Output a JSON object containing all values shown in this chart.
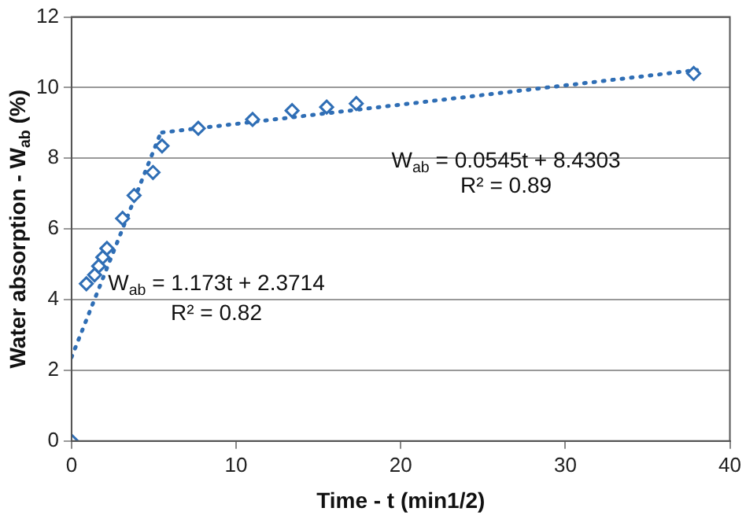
{
  "chart_data": {
    "type": "scatter",
    "xlabel": "Time - t (min1/2)",
    "ylabel": "Water absorption - W$_{ab}$ (%)",
    "xlim": [
      0,
      40
    ],
    "xticks": [
      0,
      10,
      20,
      30,
      40
    ],
    "ylim": [
      0,
      12
    ],
    "yticks": [
      0,
      2,
      4,
      6,
      8,
      10,
      12
    ],
    "grid": "y",
    "legend": false,
    "series": [
      {
        "color": "#2f6eb5",
        "marker": "diamond",
        "x": [
          0,
          0.9,
          1.4,
          1.65,
          1.9,
          2.15,
          3.1,
          3.8,
          4.95,
          5.5,
          7.7,
          11.0,
          13.4,
          15.5,
          17.3,
          37.8
        ],
        "values": [
          0,
          4.45,
          4.7,
          4.95,
          5.2,
          5.45,
          6.3,
          6.95,
          7.6,
          8.35,
          8.85,
          9.1,
          9.35,
          9.45,
          9.55,
          10.4
        ]
      },
      {
        "type": "line",
        "color": "#2f6eb5",
        "marker": "none",
        "line_style": "dotted",
        "x": [
          0,
          5.5
        ],
        "values": [
          2.37,
          8.82
        ]
      },
      {
        "type": "line",
        "color": "#2f6eb5",
        "marker": "none",
        "line_style": "dotted",
        "x": [
          5.5,
          38
        ],
        "values": [
          8.73,
          10.5
        ]
      }
    ],
    "annotations": [
      "W$_{ab}$ = 0.0545t + 8.4303",
      "R² = 0.89",
      "W$_{ab}$ = 1.173t + 2.3714",
      "R² = 0.82"
    ]
  }
}
